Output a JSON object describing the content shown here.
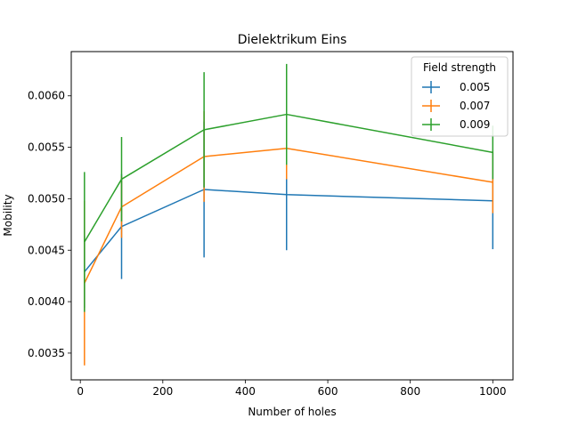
{
  "chart_data": {
    "type": "line",
    "title": "Dielektrikum Eins",
    "xlabel": "Number of holes",
    "ylabel": "Mobility",
    "xlim": [
      -22,
      1049
    ],
    "ylim": [
      0.00324,
      0.00643
    ],
    "xticks": [
      0,
      200,
      400,
      600,
      800,
      1000
    ],
    "xtick_labels": [
      "0",
      "200",
      "400",
      "600",
      "800",
      "1000"
    ],
    "yticks": [
      0.0035,
      0.004,
      0.0045,
      0.005,
      0.0055,
      0.006
    ],
    "ytick_labels": [
      "0.0035",
      "0.0040",
      "0.0045",
      "0.0050",
      "0.0055",
      "0.0060"
    ],
    "grid": false,
    "legend": {
      "title": "Field strength",
      "position": "top-right"
    },
    "x": [
      10,
      100,
      300,
      500,
      1000
    ],
    "series": [
      {
        "name": "0.005",
        "color": "#1f77b4",
        "values": [
          0.00429,
          0.00473,
          0.00509,
          0.00504,
          0.00498
        ],
        "err": [
          0.00035,
          0.00051,
          0.00066,
          0.00054,
          0.00047
        ]
      },
      {
        "name": "0.007",
        "color": "#ff7f0e",
        "values": [
          0.00418,
          0.00492,
          0.00541,
          0.00549,
          0.00516
        ],
        "err": [
          0.0008,
          0.0003,
          0.00044,
          0.0003,
          0.0003
        ]
      },
      {
        "name": "0.009",
        "color": "#2ca02c",
        "values": [
          0.00458,
          0.00519,
          0.00567,
          0.00582,
          0.00545
        ],
        "err": [
          0.00068,
          0.00041,
          0.00056,
          0.00049,
          0.00026
        ]
      }
    ]
  }
}
